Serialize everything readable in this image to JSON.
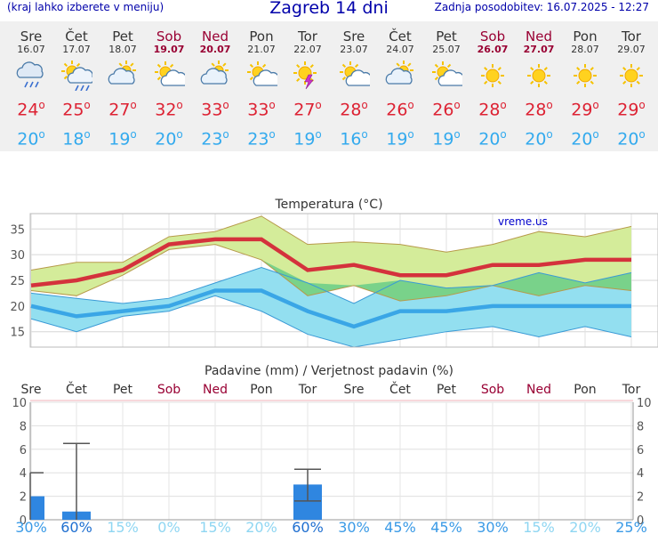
{
  "header": {
    "hint": "(kraj lahko izberete v meniju)",
    "title": "Zagreb 14 dni",
    "updated": "Zadnja posodobitev: 16.07.2025 - 12:27"
  },
  "days": [
    {
      "name": "Sre",
      "date": "16.07",
      "weekend": false,
      "icon": "rain-cloud-icon",
      "tmax": "24",
      "tmin": "20"
    },
    {
      "name": "Čet",
      "date": "17.07",
      "weekend": false,
      "icon": "sun-rain-cloud-icon",
      "tmax": "25",
      "tmin": "18"
    },
    {
      "name": "Pet",
      "date": "18.07",
      "weekend": false,
      "icon": "cloud-sun-icon",
      "tmax": "27",
      "tmin": "19"
    },
    {
      "name": "Sob",
      "date": "19.07",
      "weekend": true,
      "icon": "sun-cloud-icon",
      "tmax": "32",
      "tmin": "20"
    },
    {
      "name": "Ned",
      "date": "20.07",
      "weekend": true,
      "icon": "cloud-sun-icon",
      "tmax": "33",
      "tmin": "23"
    },
    {
      "name": "Pon",
      "date": "21.07",
      "weekend": false,
      "icon": "sun-cloud-icon",
      "tmax": "33",
      "tmin": "23"
    },
    {
      "name": "Tor",
      "date": "22.07",
      "weekend": false,
      "icon": "thunderstorm-sun-icon",
      "tmax": "27",
      "tmin": "19"
    },
    {
      "name": "Sre",
      "date": "23.07",
      "weekend": false,
      "icon": "sun-cloud-icon",
      "tmax": "28",
      "tmin": "16"
    },
    {
      "name": "Čet",
      "date": "24.07",
      "weekend": false,
      "icon": "cloud-sun-icon",
      "tmax": "26",
      "tmin": "19"
    },
    {
      "name": "Pet",
      "date": "25.07",
      "weekend": false,
      "icon": "sun-cloud-icon",
      "tmax": "26",
      "tmin": "19"
    },
    {
      "name": "Sob",
      "date": "26.07",
      "weekend": true,
      "icon": "sun-icon",
      "tmax": "28",
      "tmin": "20"
    },
    {
      "name": "Ned",
      "date": "27.07",
      "weekend": true,
      "icon": "sun-icon",
      "tmax": "28",
      "tmin": "20"
    },
    {
      "name": "Pon",
      "date": "28.07",
      "weekend": false,
      "icon": "sun-icon",
      "tmax": "29",
      "tmin": "20"
    },
    {
      "name": "Tor",
      "date": "29.07",
      "weekend": false,
      "icon": "sun-icon",
      "tmax": "29",
      "tmin": "20"
    }
  ],
  "colors": {
    "max_line": "#d4323c",
    "max_band": "#d4ec9a",
    "min_line": "#3aa6e6",
    "min_band": "#93dff0",
    "overlap": "#79d28a",
    "weekend_text": "#990033",
    "bar": "#2f86e0",
    "precip_label": "#1f6fd0",
    "precip_label_light": "#8fd6f2"
  },
  "chart_data": [
    {
      "type": "line",
      "title": "Temperatura (°C)",
      "watermark": "vreme.us",
      "categories": [
        "Sre",
        "Čet",
        "Pet",
        "Sob",
        "Ned",
        "Pon",
        "Tor",
        "Sre",
        "Čet",
        "Pet",
        "Sob",
        "Ned",
        "Pon",
        "Tor"
      ],
      "ylim": [
        12,
        38
      ],
      "yticks": [
        15,
        20,
        25,
        30,
        35
      ],
      "grid": true,
      "series": [
        {
          "values": [
            24,
            25,
            27,
            32,
            33,
            33,
            27,
            28,
            26,
            26,
            28,
            28,
            29,
            29
          ],
          "band_low": [
            23,
            22,
            26,
            31,
            32,
            29,
            22,
            24,
            21,
            22,
            24,
            22,
            24,
            23
          ],
          "band_high": [
            27,
            28.5,
            28.5,
            33.5,
            34.5,
            37.5,
            32,
            32.5,
            32,
            30.5,
            32,
            34.5,
            33.5,
            35.5
          ]
        },
        {
          "values": [
            20,
            18,
            19,
            20,
            23,
            23,
            19,
            16,
            19,
            19,
            20,
            20,
            20,
            20
          ],
          "band_low": [
            17.5,
            15,
            18,
            19,
            22,
            19,
            14.5,
            12,
            13.5,
            15,
            16,
            14,
            16,
            14
          ],
          "band_high": [
            22.5,
            21.5,
            20.5,
            21.5,
            24.5,
            27.5,
            24.5,
            20.5,
            25,
            23.5,
            24,
            26.5,
            24.5,
            26.5
          ]
        }
      ]
    },
    {
      "type": "bar",
      "title": "Padavine (mm) / Verjetnost padavin (%)",
      "categories": [
        "Sre",
        "Čet",
        "Pet",
        "Sob",
        "Ned",
        "Pon",
        "Tor",
        "Sre",
        "Čet",
        "Pet",
        "Sob",
        "Ned",
        "Pon",
        "Tor"
      ],
      "ylim": [
        0,
        10
      ],
      "yticks": [
        0,
        2,
        4,
        6,
        8,
        10
      ],
      "grid": true,
      "values": [
        2.0,
        0.7,
        0,
        0,
        0,
        0,
        3.0,
        0,
        0,
        0,
        0,
        0,
        0,
        0
      ],
      "error_low": [
        0,
        0,
        null,
        null,
        null,
        null,
        1.6,
        null,
        null,
        null,
        null,
        null,
        null,
        null
      ],
      "error_high": [
        4.0,
        6.5,
        null,
        null,
        null,
        null,
        4.3,
        null,
        null,
        null,
        null,
        null,
        null,
        null
      ],
      "probability": [
        "30%",
        "60%",
        "15%",
        "0%",
        "15%",
        "20%",
        "60%",
        "30%",
        "45%",
        "45%",
        "30%",
        "15%",
        "20%",
        "25%"
      ]
    }
  ]
}
